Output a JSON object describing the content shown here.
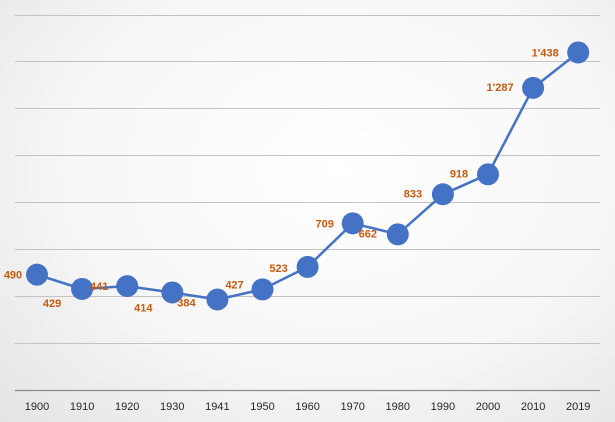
{
  "chart_data": {
    "type": "line",
    "title": "",
    "xlabel": "",
    "ylabel": "",
    "categories": [
      "1900",
      "1910",
      "1920",
      "1930",
      "1941",
      "1950",
      "1960",
      "1970",
      "1980",
      "1990",
      "2000",
      "2010",
      "2019"
    ],
    "series": [
      {
        "values": [
          490,
          429,
          441,
          414,
          384,
          427,
          523,
          709,
          662,
          833,
          918,
          1287,
          1438
        ],
        "data_labels": [
          "490",
          "429",
          "441",
          "414",
          "384",
          "427",
          "523",
          "709",
          "662",
          "833",
          "918",
          "1'287",
          "1'438"
        ]
      }
    ],
    "ylim": [
      0,
      1600
    ],
    "y_gridlines": [
      0,
      200,
      400,
      600,
      800,
      1000,
      1200,
      1400,
      1600
    ],
    "y_tick_labels_shown": false,
    "grid": true,
    "legend": "none",
    "colors": {
      "line": "#4472c4",
      "marker": "#4472c4",
      "data_label": "#c55a11",
      "gridline": "#c3c3c3"
    }
  }
}
